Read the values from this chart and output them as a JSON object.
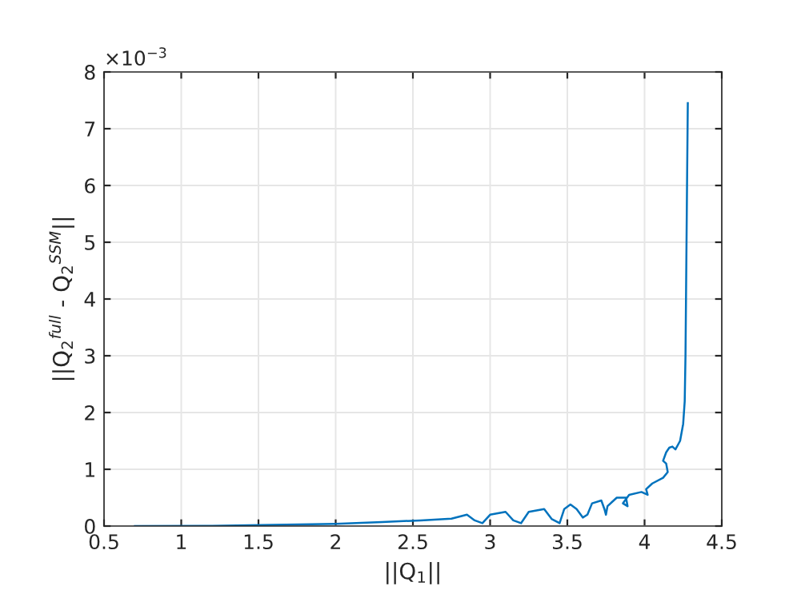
{
  "chart_data": {
    "type": "line",
    "xlabel": "||Q$_{1}$||",
    "ylabel": "||Q$_{2}$$^{full}$ - Q$_{2}$$^{SSM}$||",
    "annotations": [
      "×10$^{−3}$"
    ],
    "xlim": [
      0.5,
      4.5
    ],
    "xticks": [
      0.5,
      1,
      1.5,
      2,
      2.5,
      3,
      3.5,
      4,
      4.5
    ],
    "ylim": [
      0,
      8
    ],
    "yticks": [
      0,
      1,
      2,
      3,
      4,
      5,
      6,
      7,
      8
    ],
    "grid": true,
    "marker": "none",
    "line_style": "solid",
    "series": [
      {
        "color": "#0072bd",
        "x": [
          0.7,
          1.2,
          1.6,
          2.0,
          2.3,
          2.55,
          2.75,
          2.85,
          2.9,
          2.95,
          3.0,
          3.1,
          3.15,
          3.2,
          3.25,
          3.35,
          3.4,
          3.45,
          3.48,
          3.52,
          3.56,
          3.6,
          3.63,
          3.66,
          3.72,
          3.74,
          3.75,
          3.76,
          3.82,
          3.88,
          3.89,
          3.86,
          3.9,
          3.98,
          4.02,
          4.01,
          4.05,
          4.12,
          4.15,
          4.14,
          4.12,
          4.14,
          4.16,
          4.18,
          4.2,
          4.23,
          4.25,
          4.26,
          4.265,
          4.27,
          4.275,
          4.28
        ],
        "values": [
          0,
          0.005,
          0.02,
          0.04,
          0.07,
          0.1,
          0.13,
          0.2,
          0.1,
          0.05,
          0.2,
          0.25,
          0.1,
          0.05,
          0.25,
          0.3,
          0.12,
          0.05,
          0.3,
          0.38,
          0.3,
          0.15,
          0.2,
          0.4,
          0.45,
          0.3,
          0.2,
          0.35,
          0.5,
          0.5,
          0.35,
          0.4,
          0.55,
          0.6,
          0.55,
          0.65,
          0.75,
          0.85,
          0.95,
          1.1,
          1.15,
          1.3,
          1.38,
          1.4,
          1.35,
          1.5,
          1.8,
          2.2,
          3.0,
          4.5,
          6.0,
          7.45
        ]
      }
    ]
  }
}
